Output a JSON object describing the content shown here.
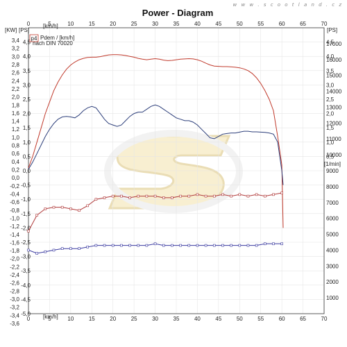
{
  "watermark": "w w w . s c o o t l a n d . c z",
  "chart_data": {
    "type": "line",
    "title": "Power - Diagram",
    "legend": {
      "badge": "p4",
      "line1": "Pdem / [km/h]",
      "line2": "nach DIN 70020"
    },
    "x_axis": {
      "label": "[km/h]",
      "ticks": [
        0,
        5,
        10,
        15,
        20,
        25,
        30,
        35,
        40,
        45,
        50,
        55,
        60,
        65,
        70
      ],
      "range": [
        0,
        70
      ]
    },
    "y_left_kw": {
      "label": "[KW]",
      "ticks": [
        "3,4",
        "3,2",
        "3,0",
        "2,8",
        "2,6",
        "2,4",
        "2,2",
        "2,0",
        "1,8",
        "1,6",
        "1,4",
        "1,2",
        "1,0",
        "0,8",
        "0,6",
        "0,4",
        "0,2",
        "0,0",
        "-0,2",
        "-0,4",
        "-0,6",
        "-0,8",
        "-1,0",
        "-1,2",
        "-1,4",
        "-1,6",
        "-1,8",
        "-2,0",
        "-2,2",
        "-2,4",
        "-2,6",
        "-2,8",
        "-3,0",
        "-3,2",
        "-3,4",
        "-3,6"
      ]
    },
    "y_left_ps": {
      "label": "[PS]",
      "ticks": [
        "4,5",
        "4,0",
        "3,5",
        "3,0",
        "2,5",
        "2,0",
        "1,5",
        "1,0",
        "0,5",
        "0,0",
        "-0,5",
        "-1,0",
        "-1,5",
        "-2,0",
        "-2,5",
        "-3,0",
        "-3,5",
        "-4,0",
        "-4,5",
        "-5,0"
      ],
      "range": [
        -5,
        5
      ]
    },
    "y_right_ps": {
      "label": "[PS]",
      "ticks": [
        "4,5",
        "4,0",
        "3,5",
        "3,0",
        "2,5",
        "2,0",
        "1,5",
        "1,0",
        "0,5"
      ]
    },
    "y_right_rpm": {
      "label": "[1/min]",
      "ticks": [
        "17000",
        "16000",
        "15000",
        "14000",
        "13000",
        "12000",
        "11000",
        "10000",
        "9000",
        "8000",
        "7000",
        "6000",
        "5000",
        "4000",
        "3000",
        "2000",
        "1000"
      ],
      "range": [
        0,
        18000
      ]
    },
    "series": [
      {
        "color": "#c0392b",
        "x": [
          0,
          1,
          2,
          3,
          4,
          5,
          6,
          7,
          8,
          9,
          10,
          11,
          12,
          13,
          14,
          15,
          16,
          17,
          18,
          19,
          20,
          21,
          22,
          23,
          24,
          25,
          26,
          27,
          28,
          29,
          30,
          31,
          32,
          33,
          34,
          35,
          36,
          37,
          38,
          39,
          40,
          41,
          42,
          43,
          44,
          45,
          46,
          47,
          48,
          49,
          50,
          51,
          52,
          53,
          54,
          55,
          56,
          57,
          58,
          59,
          60,
          60.3
        ],
        "y": [
          0.1,
          0.5,
          1.0,
          1.5,
          2.0,
          2.4,
          2.8,
          3.1,
          3.35,
          3.55,
          3.7,
          3.8,
          3.88,
          3.93,
          3.96,
          3.97,
          3.97,
          3.99,
          4.02,
          4.05,
          4.06,
          4.06,
          4.05,
          4.03,
          4.0,
          3.97,
          3.93,
          3.9,
          3.88,
          3.9,
          3.92,
          3.9,
          3.87,
          3.85,
          3.86,
          3.88,
          3.9,
          3.91,
          3.92,
          3.91,
          3.88,
          3.83,
          3.76,
          3.7,
          3.66,
          3.65,
          3.64,
          3.64,
          3.63,
          3.62,
          3.6,
          3.56,
          3.5,
          3.4,
          3.25,
          3.05,
          2.8,
          2.5,
          2.1,
          1.2,
          0.2,
          -2.0
        ]
      },
      {
        "color": "#2c3e7a",
        "x": [
          0,
          1,
          2,
          3,
          4,
          5,
          6,
          7,
          8,
          9,
          10,
          11,
          12,
          13,
          14,
          15,
          16,
          17,
          18,
          19,
          20,
          21,
          22,
          23,
          24,
          25,
          26,
          27,
          28,
          29,
          30,
          31,
          32,
          33,
          34,
          35,
          36,
          37,
          38,
          39,
          40,
          41,
          42,
          43,
          44,
          45,
          46,
          47,
          48,
          49,
          50,
          51,
          52,
          53,
          54,
          55,
          56,
          57,
          58,
          59,
          60,
          60.3
        ],
        "y": [
          0.05,
          0.3,
          0.6,
          0.9,
          1.2,
          1.45,
          1.65,
          1.8,
          1.88,
          1.9,
          1.88,
          1.85,
          1.95,
          2.1,
          2.2,
          2.25,
          2.2,
          2.0,
          1.8,
          1.65,
          1.6,
          1.55,
          1.6,
          1.75,
          1.9,
          2.0,
          2.05,
          2.05,
          2.15,
          2.25,
          2.3,
          2.25,
          2.15,
          2.05,
          1.95,
          1.85,
          1.8,
          1.75,
          1.75,
          1.7,
          1.6,
          1.45,
          1.3,
          1.15,
          1.12,
          1.2,
          1.28,
          1.3,
          1.32,
          1.32,
          1.35,
          1.38,
          1.38,
          1.36,
          1.36,
          1.35,
          1.34,
          1.32,
          1.28,
          1.0,
          0.0,
          -0.5
        ]
      },
      {
        "color": "#b03a3a",
        "name_axis": "rpm",
        "x": [
          0,
          2,
          4,
          6,
          8,
          10,
          12,
          14,
          16,
          18,
          20,
          22,
          24,
          26,
          28,
          30,
          32,
          34,
          36,
          38,
          40,
          42,
          44,
          46,
          48,
          50,
          52,
          54,
          56,
          58,
          60
        ],
        "y": [
          5200,
          6200,
          6600,
          6700,
          6700,
          6600,
          6500,
          6800,
          7200,
          7300,
          7400,
          7400,
          7300,
          7400,
          7400,
          7400,
          7300,
          7300,
          7400,
          7400,
          7500,
          7400,
          7400,
          7500,
          7400,
          7500,
          7400,
          7500,
          7400,
          7500,
          7600
        ]
      },
      {
        "color": "#3a3aa0",
        "name_axis": "rpm",
        "x": [
          0,
          2,
          4,
          6,
          8,
          10,
          12,
          14,
          16,
          18,
          20,
          22,
          24,
          26,
          28,
          30,
          32,
          34,
          36,
          38,
          40,
          42,
          44,
          46,
          48,
          50,
          52,
          54,
          56,
          58,
          60
        ],
        "y": [
          4000,
          3800,
          3900,
          4000,
          4100,
          4100,
          4100,
          4200,
          4300,
          4300,
          4300,
          4300,
          4300,
          4300,
          4300,
          4400,
          4300,
          4300,
          4300,
          4300,
          4300,
          4300,
          4300,
          4300,
          4300,
          4300,
          4300,
          4300,
          4400,
          4400,
          4400
        ]
      }
    ]
  }
}
